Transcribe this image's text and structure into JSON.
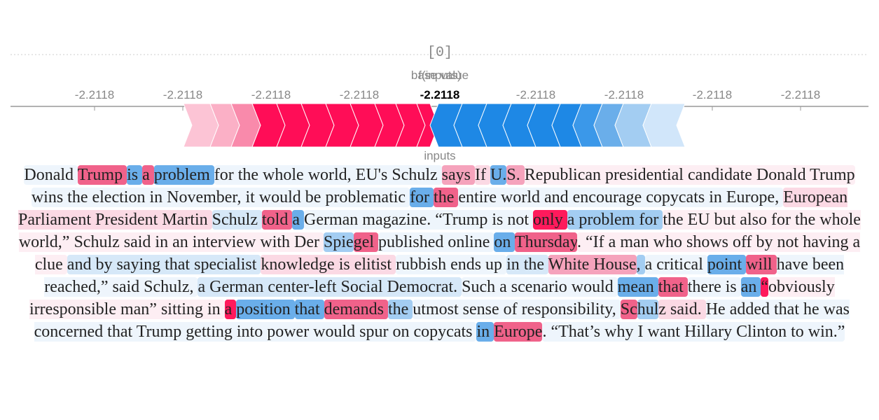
{
  "output_label": "[0]",
  "base_value_label": "base value",
  "f_label": "f(inputs)",
  "f_value": "-2.2118",
  "axis_ticks": [
    "-2.2118",
    "-2.2118",
    "-2.2118",
    "-2.2118",
    "-2.2118",
    "-2.2118",
    "-2.2118",
    "-2.2118"
  ],
  "inputs_label": "inputs",
  "tokens": [
    {
      "text": "Donald ",
      "color": "#eef5fc"
    },
    {
      "text": "Trump ",
      "color": "#f0628a"
    },
    {
      "text": "is ",
      "color": "#6aaeea"
    },
    {
      "text": "a ",
      "color": "#f0628a"
    },
    {
      "text": "problem ",
      "color": "#6aaeea"
    },
    {
      "text": "for the whole world, EU's Schulz ",
      "color": "#eef5fc"
    },
    {
      "text": "says ",
      "color": "#f5a3bc"
    },
    {
      "text": "If ",
      "color": "#fbd9e4"
    },
    {
      "text": "U.",
      "color": "#6aaeea"
    },
    {
      "text": "S. ",
      "color": "#f5a3bc"
    },
    {
      "text": "Republican presidential candidate Donald Trump ",
      "color": "#fdeef3"
    },
    {
      "text": "wins the election in November, it would be problematic ",
      "color": "#eef5fc"
    },
    {
      "text": "for ",
      "color": "#6aaeea"
    },
    {
      "text": "the ",
      "color": "#f0628a"
    },
    {
      "text": "entire world and encourage copycats in Europe, ",
      "color": "#eef5fc"
    },
    {
      "text": "European Parliament President Martin ",
      "color": "#fbd9e4"
    },
    {
      "text": "Schulz ",
      "color": "#d6e8f8"
    },
    {
      "text": "told ",
      "color": "#f0628a"
    },
    {
      "text": "a ",
      "color": "#6aaeea"
    },
    {
      "text": "German magazine. “Trump is not ",
      "color": "#eef5fc"
    },
    {
      "text": "only ",
      "color": "#ff1a5c"
    },
    {
      "text": "a problem for ",
      "color": "#a3cdf2"
    },
    {
      "text": "the EU but also for the whole world,” Schulz said in an interview with Der ",
      "color": "#fdeef3"
    },
    {
      "text": "Spie",
      "color": "#a3cdf2"
    },
    {
      "text": "gel ",
      "color": "#f0628a"
    },
    {
      "text": "published online ",
      "color": "#eef5fc"
    },
    {
      "text": "on ",
      "color": "#6aaeea"
    },
    {
      "text": "Thursday",
      "color": "#f0628a"
    },
    {
      "text": ". “If a man who shows off by not having a clue ",
      "color": "#fdeef3"
    },
    {
      "text": "and by saying that specialist ",
      "color": "#d6e8f8"
    },
    {
      "text": "knowledge is elitist ",
      "color": "#fbd9e4"
    },
    {
      "text": "rubbish ends up ",
      "color": "#eef5fc"
    },
    {
      "text": "in the ",
      "color": "#d6e8f8"
    },
    {
      "text": "White House",
      "color": "#f5a3bc"
    },
    {
      "text": ", ",
      "color": "#a3cdf2"
    },
    {
      "text": "a critical ",
      "color": "#eef5fc"
    },
    {
      "text": "point ",
      "color": "#6aaeea"
    },
    {
      "text": "will ",
      "color": "#f0628a"
    },
    {
      "text": "have been reached,” said Schulz, ",
      "color": "#eef5fc"
    },
    {
      "text": "a German center-left Social Democrat. ",
      "color": "#d6e8f8"
    },
    {
      "text": "Such a scenario would ",
      "color": "#eef5fc"
    },
    {
      "text": "mean ",
      "color": "#6aaeea"
    },
    {
      "text": "that ",
      "color": "#f0628a"
    },
    {
      "text": "there is ",
      "color": "#eef5fc"
    },
    {
      "text": "an ",
      "color": "#6aaeea"
    },
    {
      "text": "“",
      "color": "#ff1a5c"
    },
    {
      "text": "obviously irresponsible man” sitting in ",
      "color": "#fdeef3"
    },
    {
      "text": "a ",
      "color": "#ff1a5c"
    },
    {
      "text": "position ",
      "color": "#6aaeea"
    },
    {
      "text": "that ",
      "color": "#6aaeea"
    },
    {
      "text": "demands ",
      "color": "#f0628a"
    },
    {
      "text": "the ",
      "color": "#a3cdf2"
    },
    {
      "text": "utmost sense of responsibility, ",
      "color": "#eef5fc"
    },
    {
      "text": "Sc",
      "color": "#f0628a"
    },
    {
      "text": "hul",
      "color": "#a3cdf2"
    },
    {
      "text": "z said. ",
      "color": "#fbd9e4"
    },
    {
      "text": "He added that he was concerned that Trump getting into power would spur on copycats ",
      "color": "#eef5fc"
    },
    {
      "text": "in ",
      "color": "#6aaeea"
    },
    {
      "text": "Europe",
      "color": "#f0628a"
    },
    {
      "text": ". “That’s why I want Hillary Clinton to win.”",
      "color": "#eef5fc"
    }
  ]
}
